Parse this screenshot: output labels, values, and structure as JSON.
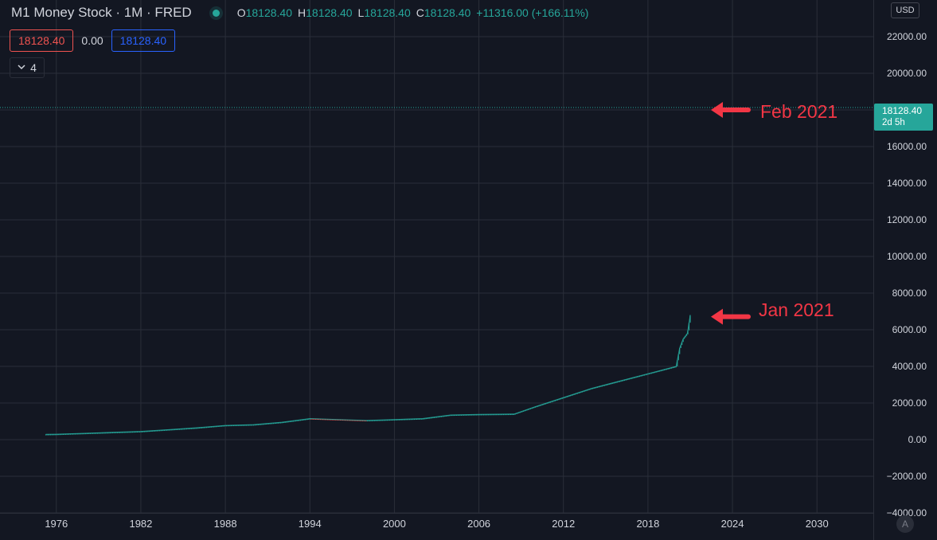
{
  "legend": {
    "title": "M1 Money Stock · 1M · FRED",
    "open_label": "O",
    "open_value": "18128.40",
    "high_label": "H",
    "high_value": "18128.40",
    "low_label": "L",
    "low_value": "18128.40",
    "close_label": "C",
    "close_value": "18128.40",
    "change": "+11316.00 (+166.11%)"
  },
  "inputs": {
    "value_red": "18128.40",
    "value_plain": "0.00",
    "value_blue": "18128.40"
  },
  "collapse": {
    "count": "4",
    "icon": "chevron-down-icon"
  },
  "currency": "USD",
  "price_label": {
    "price": "18128.40",
    "countdown": "2d 5h"
  },
  "auto_button": "A",
  "annotations": [
    {
      "text": "Feb 2021",
      "value": 18128.4
    },
    {
      "text": "Jan 2021",
      "value": 6800
    }
  ],
  "colors": {
    "background": "#131722",
    "grid": "#2a2e39",
    "up": "#26a69a",
    "down": "#ef5350",
    "annotation": "#f23645",
    "axis_text": "#d1d4dc"
  },
  "chart_data": {
    "type": "line",
    "title": "M1 Money Stock",
    "xlabel": "",
    "ylabel": "",
    "x_ticks": [
      "1976",
      "1982",
      "1988",
      "1994",
      "2000",
      "2006",
      "2012",
      "2018",
      "2024",
      "2030"
    ],
    "y_ticks": [
      "22000.00",
      "20000.00",
      "18000.00",
      "16000.00",
      "14000.00",
      "12000.00",
      "10000.00",
      "8000.00",
      "6000.00",
      "4000.00",
      "2000.00",
      "0.00",
      "−2000.00",
      "−4000.00"
    ],
    "xlim": [
      1972,
      2034
    ],
    "ylim": [
      -4000,
      24000
    ],
    "grid": true,
    "last_price": 18128.4,
    "series": [
      {
        "x": [
          1975.25,
          1976,
          1978,
          1980,
          1982,
          1984,
          1986,
          1988,
          1990,
          1992,
          1994,
          1996,
          1998,
          2000,
          2002,
          2004,
          2006,
          2008.5,
          2010,
          2012,
          2014,
          2016,
          2018,
          2019,
          2020,
          2020.25,
          2020.5,
          2020.8,
          2021
        ],
        "values": [
          290,
          300,
          350,
          400,
          450,
          550,
          650,
          780,
          820,
          950,
          1150,
          1100,
          1050,
          1100,
          1150,
          1350,
          1380,
          1400,
          1800,
          2300,
          2800,
          3200,
          3600,
          3800,
          4000,
          5000,
          5500,
          5800,
          6800
        ]
      }
    ]
  }
}
